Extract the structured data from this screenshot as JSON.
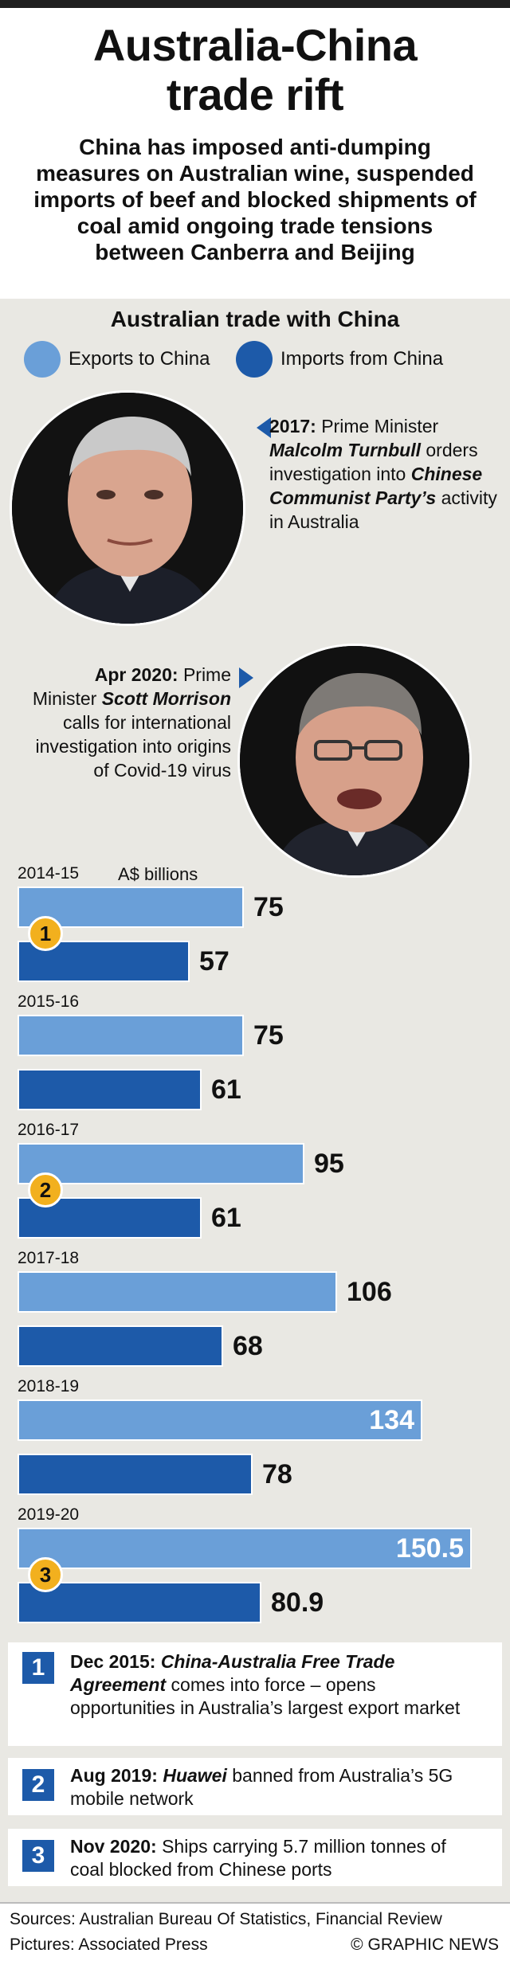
{
  "title": "Australia-China trade rift",
  "subtitle": "China has imposed anti-dumping measures on Australian wine, suspended imports of beef and blocked shipments of coal amid ongoing trade tensions between Canberra and Beijing",
  "section_title": "Australian trade with China",
  "legend": {
    "exports": "Exports to China",
    "imports": "Imports from China"
  },
  "colors": {
    "exports": "#6a9fd8",
    "imports": "#1d5aa9",
    "marker": "#f2b01e"
  },
  "events": [
    {
      "date": "2017:",
      "text_1": "Prime Minister ",
      "name": "Malcolm Turnbull",
      "text_2": " orders investigation into ",
      "target": "Chinese Communist Party’s",
      "text_3": " activity in Australia"
    },
    {
      "date": "Apr 2020:",
      "text_1": "Prime Minister ",
      "name": "Scott Morrison",
      "text_2": " calls for international investigation into origins of Covid-19 virus"
    }
  ],
  "chart_data": {
    "type": "bar",
    "orientation": "horizontal",
    "unit": "A$ billions",
    "categories": [
      "2014-15",
      "2015-16",
      "2016-17",
      "2017-18",
      "2018-19",
      "2019-20"
    ],
    "series": [
      {
        "name": "Exports to China",
        "values": [
          75,
          75,
          95,
          106,
          134,
          150.5
        ],
        "labels": [
          "75",
          "75",
          "95",
          "106",
          "134",
          "150.5"
        ]
      },
      {
        "name": "Imports from China",
        "values": [
          57,
          61,
          61,
          68,
          78,
          80.9
        ],
        "labels": [
          "57",
          "61",
          "61",
          "68",
          "78",
          "80.9"
        ]
      }
    ],
    "markers": [
      {
        "label": "1",
        "category": "2014-15"
      },
      {
        "label": "2",
        "category": "2016-17"
      },
      {
        "label": "3",
        "category": "2019-20"
      }
    ]
  },
  "notes": [
    {
      "number": "1",
      "date": "Dec 2015:",
      "emph": "China-Australia Free Trade Agreement",
      "text": " comes into force – opens opportunities in Australia’s largest export market"
    },
    {
      "number": "2",
      "date": "Aug 2019:",
      "emph": "Huawei",
      "text": " banned from Australia’s 5G mobile network"
    },
    {
      "number": "3",
      "date": "Nov 2020:",
      "emph": "",
      "text": "Ships carrying 5.7 million tonnes of coal blocked from Chinese ports"
    }
  ],
  "footer": {
    "sources": "Sources: Australian Bureau Of Statistics, Financial Review",
    "pictures": "Pictures: Associated Press",
    "credit": "© GRAPHIC NEWS"
  }
}
